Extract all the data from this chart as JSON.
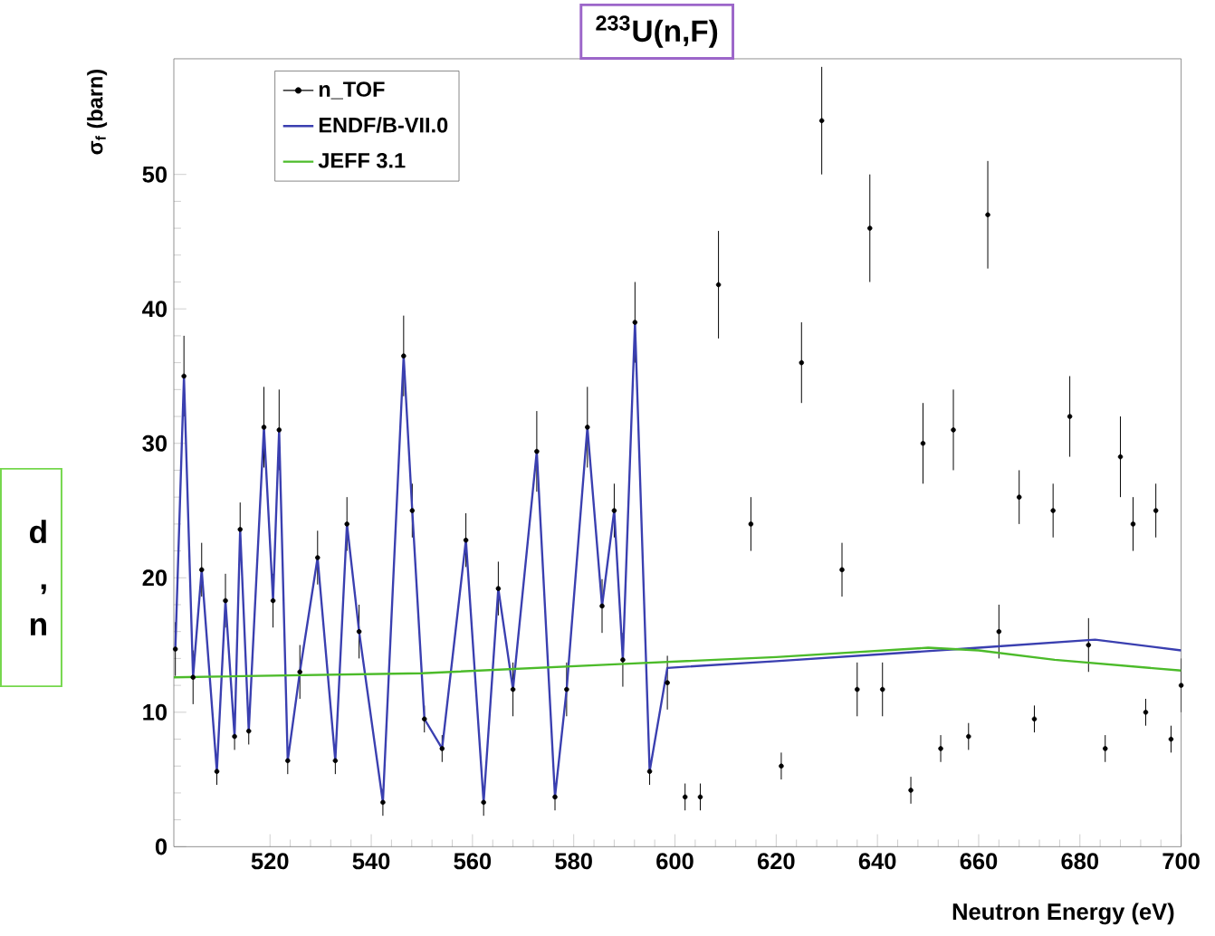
{
  "chart_data": {
    "type": "line",
    "title": "$^{233}$U(n,F)",
    "xlabel": "Neutron Energy (eV)",
    "ylabel": "σ$_{f}$ (barn)",
    "annotations": [
      "d",
      ",",
      "n"
    ],
    "xlim": [
      501,
      700
    ],
    "ylim": [
      0,
      58.6
    ],
    "xticks": [
      520,
      540,
      560,
      580,
      600,
      620,
      640,
      660,
      680,
      700
    ],
    "yticks": [
      0,
      10,
      20,
      30,
      40,
      50
    ],
    "legend": "top left",
    "grid": false,
    "series": [
      {
        "name": "n_TOF",
        "type": "scatter",
        "marker": "circle",
        "color": "#000000",
        "x": [
          501.3,
          503,
          504.8,
          506.5,
          509.5,
          511.2,
          513,
          514.1,
          515.8,
          518.8,
          520.6,
          521.8,
          523.5,
          525.9,
          529.4,
          532.9,
          535.2,
          537.6,
          542.3,
          546.4,
          548.1,
          550.5,
          554,
          558.7,
          562.2,
          565.1,
          568,
          572.7,
          576.3,
          578.6,
          582.7,
          585.6,
          588,
          589.7,
          592.1,
          595,
          598.5,
          602,
          605,
          608.6,
          615,
          621,
          625,
          629,
          633,
          636,
          638.5,
          641,
          646.6,
          649,
          652.5,
          655,
          658,
          661.8,
          664,
          668,
          671,
          674.7,
          678,
          681.7,
          685,
          688,
          690.5,
          693,
          695,
          698,
          700
        ],
        "values": [
          14.7,
          35,
          12.6,
          20.6,
          5.6,
          18.3,
          8.2,
          23.6,
          8.6,
          31.2,
          18.3,
          31,
          6.4,
          13,
          21.5,
          6.4,
          24,
          16,
          3.3,
          36.5,
          25,
          9.5,
          7.3,
          22.8,
          3.3,
          19.2,
          11.7,
          29.4,
          3.7,
          11.7,
          31.2,
          17.9,
          25,
          13.9,
          39,
          5.6,
          12.2,
          3.7,
          3.7,
          41.8,
          24,
          6,
          36,
          54,
          20.6,
          11.7,
          46,
          11.7,
          4.2,
          30,
          7.3,
          31,
          8.2,
          47,
          16,
          26,
          9.5,
          25,
          32,
          15,
          7.3,
          29,
          24,
          10,
          25,
          8,
          12
        ],
        "errors": [
          2,
          3,
          2,
          2,
          1,
          2,
          1,
          2,
          1,
          3,
          2,
          3,
          1,
          2,
          2,
          1,
          2,
          2,
          1,
          3,
          2,
          1,
          1,
          2,
          1,
          2,
          2,
          3,
          1,
          2,
          3,
          2,
          2,
          2,
          3,
          1,
          2,
          1,
          1,
          4,
          2,
          1,
          3,
          4,
          2,
          2,
          4,
          2,
          1,
          3,
          1,
          3,
          1,
          4,
          2,
          2,
          1,
          2,
          3,
          2,
          1,
          3,
          2,
          1,
          2,
          1,
          2
        ]
      },
      {
        "name": "ENDF/B-VII.0",
        "color": "#3a3fb0",
        "x": [
          501.3,
          503,
          504.8,
          506.5,
          509.5,
          511.2,
          513,
          514.1,
          515.8,
          518.8,
          520.6,
          521.8,
          523.5,
          525.9,
          529.4,
          532.9,
          535.2,
          537.6,
          542.3,
          546.4,
          548.1,
          550.5,
          554,
          558.7,
          562.2,
          565.1,
          568,
          572.7,
          576.3,
          578.6,
          582.7,
          585.6,
          588,
          589.7,
          592.1,
          595,
          598.5,
          620,
          640,
          660,
          683,
          700
        ],
        "values": [
          14.7,
          35,
          12.6,
          20.6,
          5.6,
          18.3,
          8.2,
          23.6,
          8.6,
          31.2,
          18.3,
          31,
          6.4,
          13,
          21.5,
          6.4,
          24,
          16,
          3.3,
          36.5,
          25,
          9.5,
          7.3,
          22.8,
          3.3,
          19.2,
          11.7,
          29.4,
          3.7,
          11.7,
          31.2,
          17.9,
          25,
          13.9,
          39,
          5.6,
          13.3,
          13.8,
          14.3,
          14.8,
          15.4,
          14.6
        ]
      },
      {
        "name": "JEFF 3.1",
        "color": "#4cbb2a",
        "x": [
          501,
          550,
          590,
          620,
          650,
          660,
          675,
          700
        ],
        "values": [
          12.6,
          12.9,
          13.6,
          14.1,
          14.8,
          14.6,
          13.9,
          13.1
        ]
      }
    ]
  }
}
